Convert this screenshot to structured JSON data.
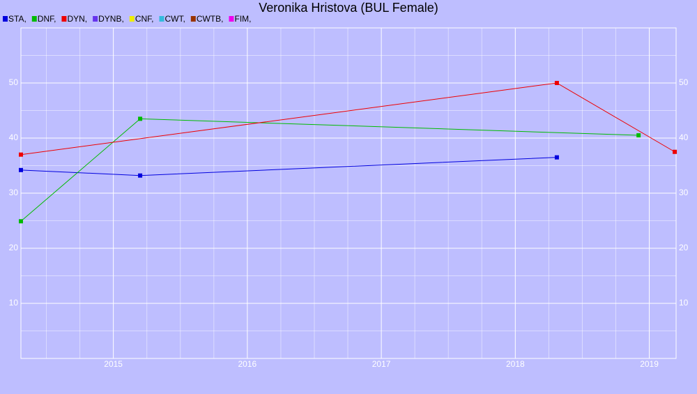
{
  "chart_data": {
    "type": "line",
    "title": "Veronika Hristova (BUL Female)",
    "xlim": [
      2014.31,
      2019.2
    ],
    "xticks": [
      2015,
      2016,
      2017,
      2018,
      2019
    ],
    "ylim": [
      0,
      60
    ],
    "yticks": [
      10,
      20,
      30,
      40,
      50
    ],
    "grid": true,
    "minor_grid": true,
    "background": "#bebeff",
    "grid_color": "#ffffff",
    "series": [
      {
        "name": "STA,",
        "color": "#0000dd",
        "x": [
          2014.31,
          2015.2,
          2018.31
        ],
        "values": [
          34.2,
          33.2,
          36.5
        ]
      },
      {
        "name": "DNF,",
        "color": "#00bb00",
        "x": [
          2014.31,
          2015.2,
          2018.92
        ],
        "values": [
          24.9,
          43.5,
          40.5
        ]
      },
      {
        "name": "DYN,",
        "color": "#ee0000",
        "x": [
          2014.31,
          2018.31,
          2019.19
        ],
        "values": [
          37.0,
          50.0,
          37.5
        ]
      },
      {
        "name": "DYNB,",
        "color": "#6633ee",
        "x": [],
        "values": []
      },
      {
        "name": "CNF,",
        "color": "#eeee00",
        "x": [],
        "values": []
      },
      {
        "name": "CWT,",
        "color": "#33bbdd",
        "x": [],
        "values": []
      },
      {
        "name": "CWTB,",
        "color": "#993300",
        "x": [],
        "values": []
      },
      {
        "name": "FIM,",
        "color": "#ee00ee",
        "x": [],
        "values": []
      }
    ]
  }
}
